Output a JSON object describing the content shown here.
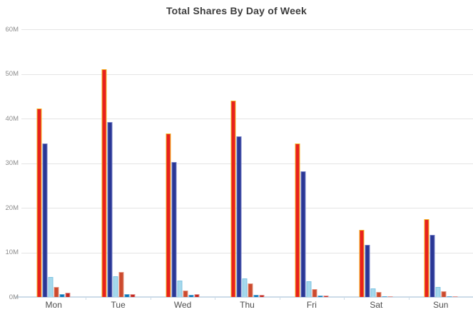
{
  "chart": {
    "background_color": "#ffffff",
    "gridline_color": "#e4e4e4",
    "axis_line_color": "#ccdbe8",
    "title_color": "#3d3d3d",
    "y_label_color": "#8c8c8c",
    "x_label_color": "#4e4e4e"
  },
  "chart_data": {
    "type": "bar",
    "title": "Total Shares By Day of Week",
    "xlabel": "",
    "ylabel": "",
    "unit": "M (millions of shares)",
    "categories": [
      "Mon",
      "Tue",
      "Wed",
      "Thu",
      "Fri",
      "Sat",
      "Sun"
    ],
    "series": [
      {
        "name": "red",
        "color": "#e8211d",
        "stroke": "#f3b31f",
        "values": [
          42.3,
          51.0,
          36.7,
          44.0,
          34.4,
          15.1,
          17.4
        ]
      },
      {
        "name": "navy",
        "color": "#2a3795",
        "stroke": "#6f7bc4",
        "values": [
          34.4,
          39.2,
          30.2,
          36.0,
          28.2,
          11.7,
          13.9
        ]
      },
      {
        "name": "light-blue",
        "color": "#a5d8ec",
        "stroke": "#7ec3e2",
        "values": [
          4.4,
          4.6,
          3.7,
          4.1,
          3.5,
          1.9,
          2.2
        ]
      },
      {
        "name": "orange-red",
        "color": "#cc4a2e",
        "stroke": "#e2907b",
        "values": [
          2.2,
          5.6,
          1.5,
          3.1,
          1.7,
          1.1,
          1.2
        ]
      },
      {
        "name": "blue",
        "color": "#0d76b8",
        "stroke": "#58a7d4",
        "values": [
          0.7,
          0.7,
          0.5,
          0.5,
          0.3,
          0.1,
          0.1
        ]
      },
      {
        "name": "dark-red",
        "color": "#c42821",
        "stroke": "#e0938e",
        "values": [
          1.0,
          0.7,
          0.6,
          0.4,
          0.3,
          0.2,
          0.2
        ]
      }
    ],
    "y_tick_labels": [
      "60M",
      "50M",
      "40M",
      "30M",
      "20M",
      "10M",
      "0M"
    ],
    "ylim": [
      0,
      60
    ],
    "grid": "horizontal",
    "legend": "none"
  }
}
